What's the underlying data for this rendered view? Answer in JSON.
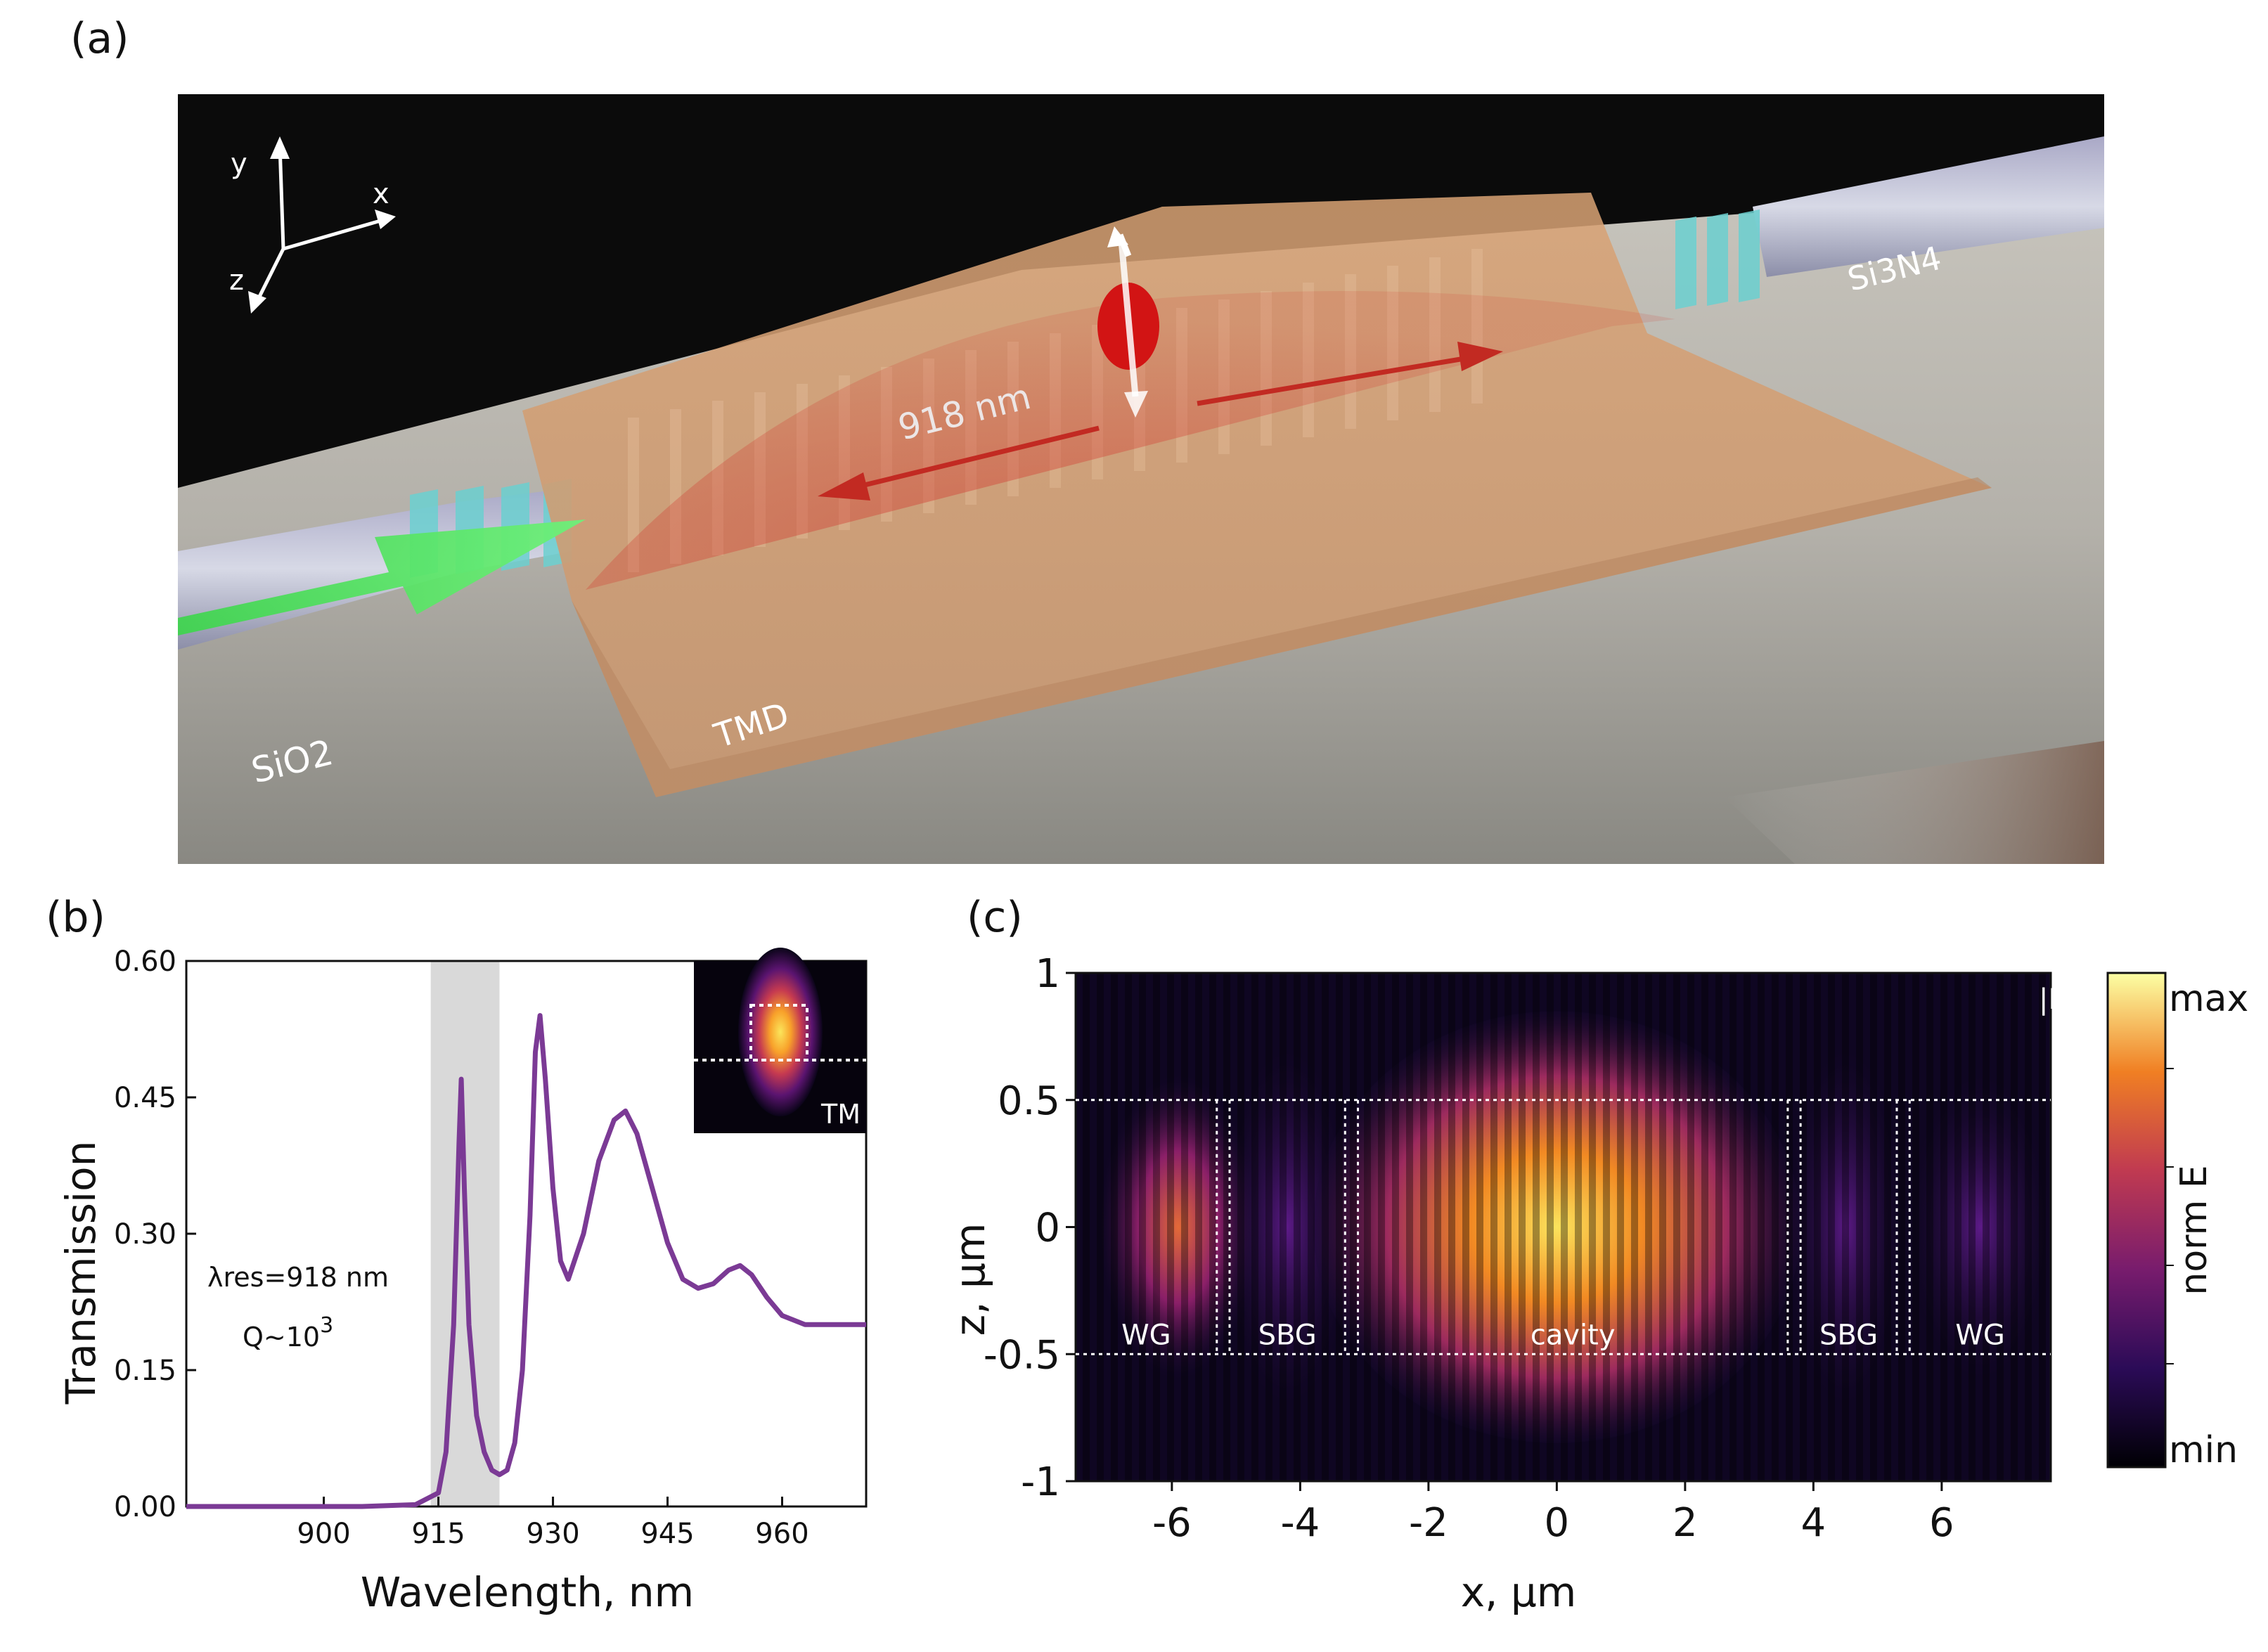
{
  "panel_a": {
    "label": "(a)",
    "axes": {
      "y": "y",
      "x": "x",
      "z": "z"
    },
    "labels": {
      "wavelength": "918 nm",
      "tmd": "TMD",
      "sio2": "SiO2",
      "si3n4": "Si3N4"
    },
    "colors": {
      "tmd": "#e2a46e",
      "mode": "#c22a22",
      "pump": "#3bd64a",
      "grating": "#6bd0d0"
    }
  },
  "panel_b": {
    "label": "(b)",
    "inset_label": "TM",
    "annotation_lambda": "λres=918 nm",
    "annotation_q": "Q~10",
    "annotation_q_exp": "3"
  },
  "panel_c": {
    "label": "(c)",
    "field_label": "|Ey|",
    "regions": [
      "WG",
      "SBG",
      "cavity",
      "SBG",
      "WG"
    ],
    "colorbar": {
      "max": "max",
      "min": "min",
      "label": "norm E"
    }
  },
  "chart_data": [
    {
      "type": "line",
      "title": "",
      "xlabel": "Wavelength, nm",
      "ylabel": "Transmission",
      "xlim": [
        882,
        971
      ],
      "ylim": [
        0,
        0.6
      ],
      "xticks": [
        "900",
        "915",
        "930",
        "945",
        "960"
      ],
      "yticks": [
        "0.00",
        "0.15",
        "0.30",
        "0.45",
        "0.60"
      ],
      "highlight_band": [
        914,
        923
      ],
      "series": [
        {
          "name": "Transmission",
          "color": "#7b3a95",
          "x": [
            882,
            905,
            912,
            915,
            916,
            917,
            917.7,
            918,
            918.4,
            919,
            920,
            921,
            922,
            923,
            924,
            925,
            926,
            927,
            927.7,
            928.3,
            929,
            930,
            931,
            932,
            934,
            936,
            938,
            939.5,
            941,
            943,
            945,
            947,
            949,
            951,
            953,
            954.5,
            956,
            958,
            960,
            963,
            966,
            968,
            971
          ],
          "values": [
            0.0,
            0.0,
            0.002,
            0.015,
            0.06,
            0.2,
            0.4,
            0.47,
            0.35,
            0.2,
            0.1,
            0.06,
            0.04,
            0.035,
            0.04,
            0.07,
            0.15,
            0.32,
            0.5,
            0.54,
            0.47,
            0.35,
            0.27,
            0.25,
            0.3,
            0.38,
            0.425,
            0.435,
            0.41,
            0.35,
            0.29,
            0.25,
            0.24,
            0.245,
            0.26,
            0.265,
            0.255,
            0.23,
            0.21,
            0.2,
            0.2,
            0.2,
            0.2
          ]
        }
      ]
    },
    {
      "type": "heatmap",
      "title": "",
      "xlabel": "x, μm",
      "ylabel": "z, μm",
      "xlim": [
        -7.5,
        7.7
      ],
      "ylim": [
        -1,
        1
      ],
      "xticks": [
        "-6",
        "-4",
        "-2",
        "0",
        "2",
        "4",
        "6"
      ],
      "yticks": [
        "1",
        "0.5",
        "0",
        "-0.5",
        "-1"
      ],
      "region_bounds_x": [
        [
          -7.5,
          -5.3
        ],
        [
          -5.1,
          -3.3
        ],
        [
          -3.1,
          3.6
        ],
        [
          3.8,
          5.3
        ],
        [
          5.5,
          7.7
        ]
      ],
      "region_bounds_z": [
        -0.5,
        0.5
      ],
      "colormap": "inferno"
    }
  ]
}
